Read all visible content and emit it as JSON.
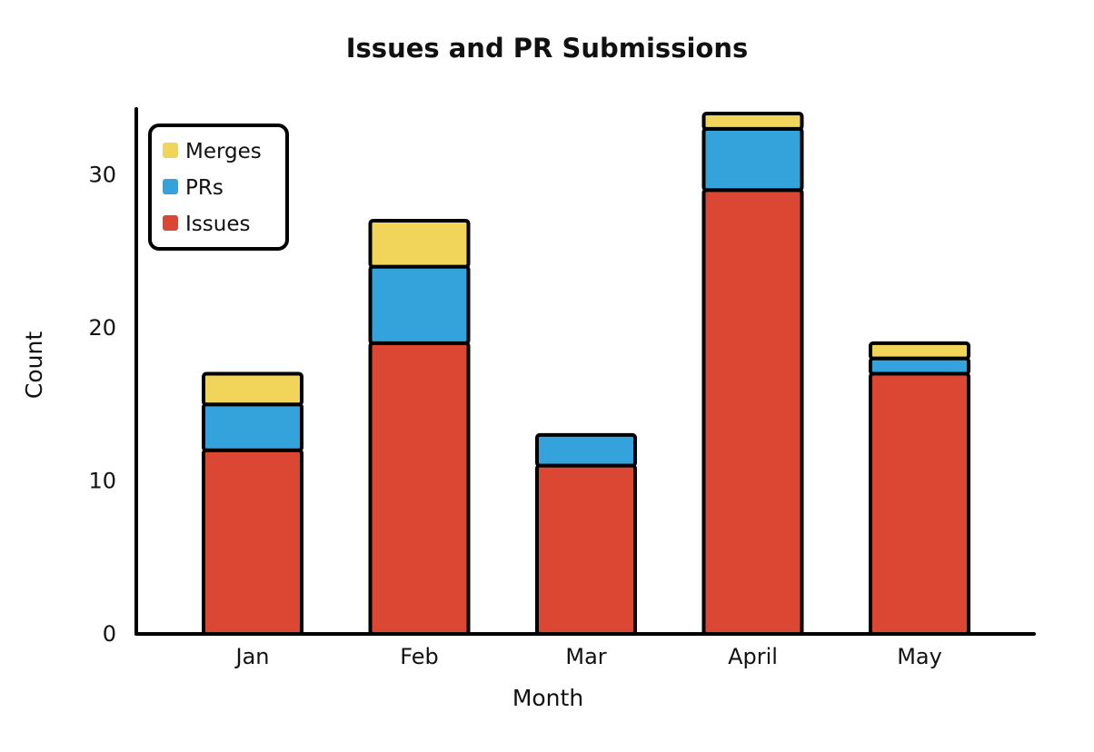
{
  "chart_data": {
    "type": "bar",
    "stacked": true,
    "title": "Issues and PR Submissions",
    "xlabel": "Month",
    "ylabel": "Count",
    "categories": [
      "Jan",
      "Feb",
      "Mar",
      "April",
      "May"
    ],
    "series": [
      {
        "name": "Issues",
        "color": "#db4733",
        "values": [
          12,
          19,
          11,
          29,
          17
        ]
      },
      {
        "name": "PRs",
        "color": "#34a3db",
        "values": [
          3,
          5,
          2,
          4,
          1
        ]
      },
      {
        "name": "Merges",
        "color": "#f0d55a",
        "values": [
          2,
          3,
          0,
          1,
          1
        ]
      }
    ],
    "yticks": [
      0,
      10,
      20,
      30
    ],
    "ylim": [
      0,
      34.3
    ],
    "legend": {
      "position": "top-left",
      "order": [
        "Merges",
        "PRs",
        "Issues"
      ]
    },
    "grid": false
  }
}
